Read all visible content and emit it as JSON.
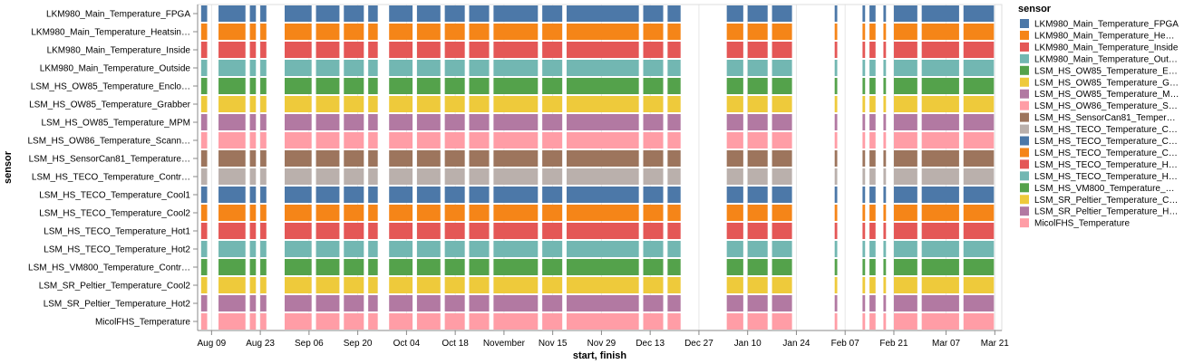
{
  "chart_data": {
    "type": "gantt",
    "ylabel": "sensor",
    "xlabel": "start, finish",
    "legend_title": "sensor",
    "legend_position": "right",
    "grid": true,
    "x_domain": [
      "2023-08-05",
      "2024-03-23"
    ],
    "x_ticks": [
      {
        "date": "2023-08-09",
        "label": "Aug 09"
      },
      {
        "date": "2023-08-23",
        "label": "Aug 23"
      },
      {
        "date": "2023-09-06",
        "label": "Sep 06"
      },
      {
        "date": "2023-09-20",
        "label": "Sep 20"
      },
      {
        "date": "2023-10-04",
        "label": "Oct 04"
      },
      {
        "date": "2023-10-18",
        "label": "Oct 18"
      },
      {
        "date": "2023-11-01",
        "label": "November"
      },
      {
        "date": "2023-11-15",
        "label": "Nov 15"
      },
      {
        "date": "2023-11-29",
        "label": "Nov 29"
      },
      {
        "date": "2023-12-13",
        "label": "Dec 13"
      },
      {
        "date": "2023-12-27",
        "label": "Dec 27"
      },
      {
        "date": "2024-01-10",
        "label": "Jan 10"
      },
      {
        "date": "2024-01-24",
        "label": "Jan 24"
      },
      {
        "date": "2024-02-07",
        "label": "Feb 07"
      },
      {
        "date": "2024-02-21",
        "label": "Feb 21"
      },
      {
        "date": "2024-03-07",
        "label": "Mar 07"
      },
      {
        "date": "2024-03-21",
        "label": "Mar 21"
      }
    ],
    "sensors": [
      {
        "tick": "LKM980_Main_Temperature_FPGA",
        "legend": "LKM980_Main_Temperature_FPGA",
        "color": "#4c78a8"
      },
      {
        "tick": "LKM980_Main_Temperature_Heatsin…",
        "legend": "LKM980_Main_Temperature_He…",
        "color": "#f58518"
      },
      {
        "tick": "LKM980_Main_Temperature_Inside",
        "legend": "LKM980_Main_Temperature_Inside",
        "color": "#e45756"
      },
      {
        "tick": "LKM980_Main_Temperature_Outside",
        "legend": "LKM980_Main_Temperature_Out…",
        "color": "#72b7b2"
      },
      {
        "tick": "LSM_HS_OW85_Temperature_Enclo…",
        "legend": "LSM_HS_OW85_Temperature_E…",
        "color": "#54a24b"
      },
      {
        "tick": "LSM_HS_OW85_Temperature_Grabber",
        "legend": "LSM_HS_OW85_Temperature_G…",
        "color": "#eeca3b"
      },
      {
        "tick": "LSM_HS_OW85_Temperature_MPM",
        "legend": "LSM_HS_OW85_Temperature_M…",
        "color": "#b279a2"
      },
      {
        "tick": "LSM_HS_OW86_Temperature_Scann…",
        "legend": "LSM_HS_OW86_Temperature_S…",
        "color": "#ff9da6"
      },
      {
        "tick": "LSM_HS_SensorCan81_Temperature…",
        "legend": "LSM_HS_SensorCan81_Temper…",
        "color": "#9d755d"
      },
      {
        "tick": "LSM_HS_TECO_Temperature_Contr…",
        "legend": "LSM_HS_TECO_Temperature_C…",
        "color": "#bab0ac"
      },
      {
        "tick": "LSM_HS_TECO_Temperature_Cool1",
        "legend": "LSM_HS_TECO_Temperature_C…",
        "color": "#4c78a8"
      },
      {
        "tick": "LSM_HS_TECO_Temperature_Cool2",
        "legend": "LSM_HS_TECO_Temperature_C…",
        "color": "#f58518"
      },
      {
        "tick": "LSM_HS_TECO_Temperature_Hot1",
        "legend": "LSM_HS_TECO_Temperature_H…",
        "color": "#e45756"
      },
      {
        "tick": "LSM_HS_TECO_Temperature_Hot2",
        "legend": "LSM_HS_TECO_Temperature_H…",
        "color": "#72b7b2"
      },
      {
        "tick": "LSM_HS_VM800_Temperature_Contr…",
        "legend": "LSM_HS_VM800_Temperature_…",
        "color": "#54a24b"
      },
      {
        "tick": "LSM_SR_Peltier_Temperature_Cool2",
        "legend": "LSM_SR_Peltier_Temperature_C…",
        "color": "#eeca3b"
      },
      {
        "tick": "LSM_SR_Peltier_Temperature_Hot2",
        "legend": "LSM_SR_Peltier_Temperature_H…",
        "color": "#b279a2"
      },
      {
        "tick": "MicolFHS_Temperature",
        "legend": "MicolFHS_Temperature",
        "color": "#ff9da6"
      }
    ],
    "intervals": [
      [
        "2023-08-06",
        "2023-08-08"
      ],
      [
        "2023-08-11",
        "2023-08-19"
      ],
      [
        "2023-08-20",
        "2023-08-22"
      ],
      [
        "2023-08-23",
        "2023-08-25"
      ],
      [
        "2023-08-30",
        "2023-09-07"
      ],
      [
        "2023-09-08",
        "2023-09-15"
      ],
      [
        "2023-09-16",
        "2023-09-22"
      ],
      [
        "2023-09-23",
        "2023-09-26"
      ],
      [
        "2023-09-29",
        "2023-10-06"
      ],
      [
        "2023-10-07",
        "2023-10-14"
      ],
      [
        "2023-10-15",
        "2023-10-21"
      ],
      [
        "2023-10-22",
        "2023-10-28"
      ],
      [
        "2023-10-29",
        "2023-11-11"
      ],
      [
        "2023-11-12",
        "2023-11-18"
      ],
      [
        "2023-11-19",
        "2023-12-10"
      ],
      [
        "2023-12-11",
        "2023-12-17"
      ],
      [
        "2023-12-18",
        "2023-12-22"
      ],
      [
        "2024-01-04",
        "2024-01-09"
      ],
      [
        "2024-01-10",
        "2024-01-16"
      ],
      [
        "2024-01-17",
        "2024-01-23"
      ],
      [
        "2024-02-04",
        "2024-02-05"
      ],
      [
        "2024-02-12",
        "2024-02-13"
      ],
      [
        "2024-02-14",
        "2024-02-16"
      ],
      [
        "2024-02-18",
        "2024-02-19"
      ],
      [
        "2024-02-21",
        "2024-02-28"
      ],
      [
        "2024-02-29",
        "2024-03-11"
      ],
      [
        "2024-03-12",
        "2024-03-21"
      ]
    ]
  }
}
